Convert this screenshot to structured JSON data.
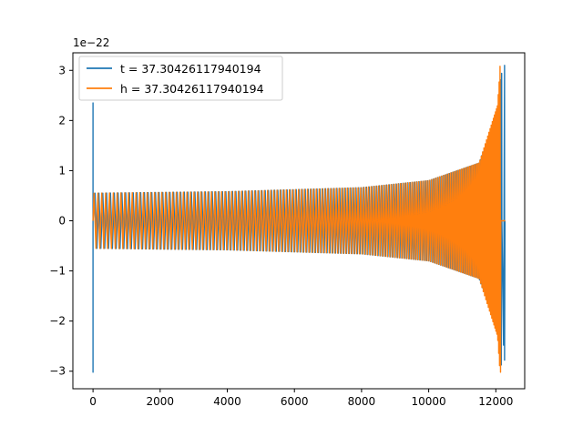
{
  "chart_data": {
    "type": "line",
    "title": "",
    "xlabel": "",
    "ylabel": "",
    "y_offset_label": "1e−22",
    "xlim": [
      -600,
      12860
    ],
    "ylim": [
      -3.35,
      3.35
    ],
    "x_ticks": [
      0,
      2000,
      4000,
      6000,
      8000,
      10000,
      12000
    ],
    "x_tick_labels": [
      "0",
      "2000",
      "4000",
      "6000",
      "8000",
      "10000",
      "12000"
    ],
    "y_ticks": [
      -3,
      -2,
      -1,
      0,
      1,
      2,
      3
    ],
    "y_tick_labels": [
      "−3",
      "−2",
      "−1",
      "0",
      "1",
      "2",
      "3"
    ],
    "grid": false,
    "legend_position": "upper-left",
    "series": [
      {
        "name": "t = 37.30426117940194",
        "color": "#1f77b4",
        "description_points": {
          "x_range": [
            0,
            12280
          ],
          "initial_spike": {
            "x": 0,
            "y_max": 2.35,
            "y_min": -3.02
          },
          "envelope_amplitude": [
            [
              200,
              0.55
            ],
            [
              4000,
              0.58
            ],
            [
              8000,
              0.66
            ],
            [
              10000,
              0.8
            ],
            [
              11500,
              1.15
            ],
            [
              12050,
              2.2
            ],
            [
              12200,
              3.1
            ]
          ],
          "final_spike": {
            "x": 12260,
            "y_max": 3.1,
            "y_min": -2.78
          }
        }
      },
      {
        "name": "h = 37.30426117940194",
        "color": "#ff7f0e",
        "description_points": {
          "x_range": [
            0,
            12280
          ],
          "envelope_amplitude": [
            [
              0,
              0.55
            ],
            [
              4000,
              0.58
            ],
            [
              8000,
              0.66
            ],
            [
              10000,
              0.8
            ],
            [
              11500,
              1.15
            ],
            [
              12050,
              2.3
            ],
            [
              12130,
              3.08
            ]
          ],
          "final_min": {
            "x": 12140,
            "y": -3.02
          },
          "tail": {
            "x_range": [
              12150,
              12280
            ],
            "y": 0
          }
        }
      }
    ]
  }
}
